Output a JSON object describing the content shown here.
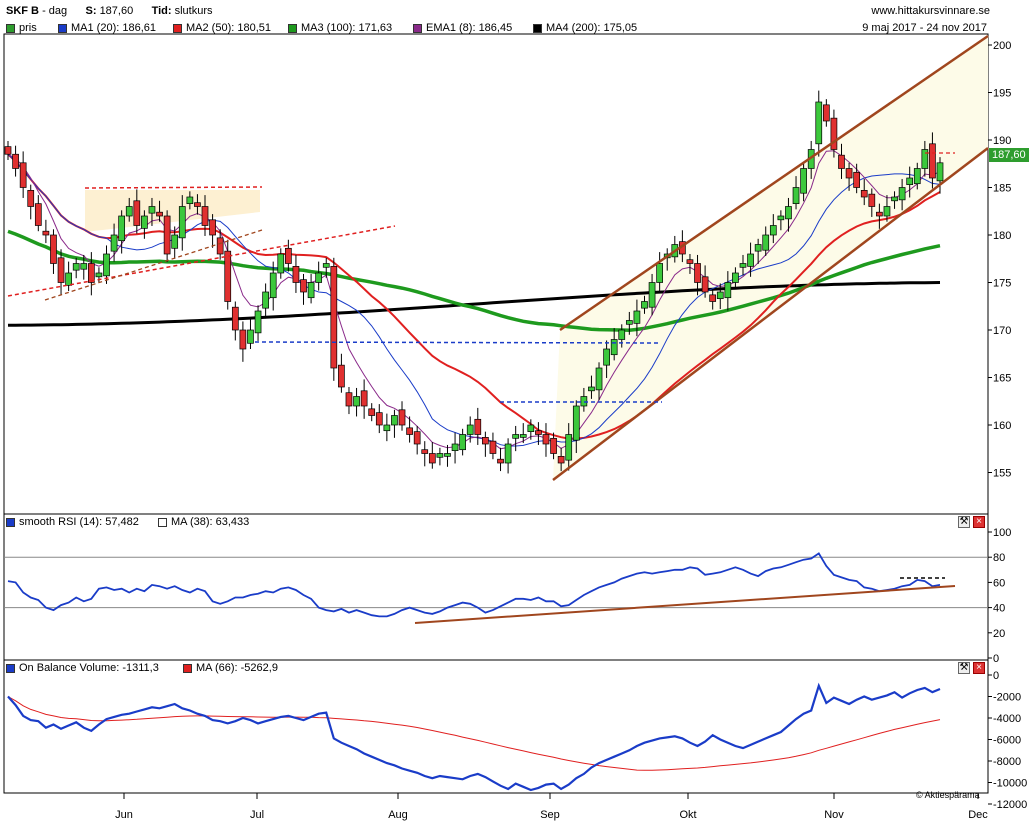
{
  "header": {
    "ticker": "SKF B",
    "period": "dag",
    "s_label": "S:",
    "s_value": "187,60",
    "tid_label": "Tid:",
    "tid_value": "slutkurs",
    "site": "www.hittakursvinnare.se",
    "date_range": "9 maj 2017 - 24 nov 2017",
    "last_price": "187,60",
    "credit": "© Aktiespärama"
  },
  "legend_price": [
    {
      "label": "pris",
      "color": "#2e9d2e"
    },
    {
      "label": "MA1 (20): 186,61",
      "color": "#1a3cc8"
    },
    {
      "label": "MA2 (50): 180,51",
      "color": "#e02020"
    },
    {
      "label": "MA3 (100): 171,63",
      "color": "#1e9a1e"
    },
    {
      "label": "EMA1 (8): 186,45",
      "color": "#8a2a8a"
    },
    {
      "label": "MA4 (200): 175,05",
      "color": "#000000"
    }
  ],
  "legend_rsi": [
    {
      "label": "smooth RSI (14): 57,482",
      "color": "#1a3cc8"
    },
    {
      "label": "MA (38): 63,433",
      "color": "#ffffff"
    }
  ],
  "legend_obv": [
    {
      "label": "On Balance Volume: -1311,3",
      "color": "#1a3cc8"
    },
    {
      "label": "MA (66): -5262,9",
      "color": "#e02020"
    }
  ],
  "chart_data": [
    {
      "type": "candlestick",
      "x_ticks": [
        "Jun",
        "Jul",
        "Aug",
        "Sep",
        "Okt",
        "Nov",
        "Dec"
      ],
      "y_ticks": [
        155,
        160,
        165,
        170,
        175,
        180,
        185,
        190,
        195,
        200
      ],
      "ylim": [
        150,
        200
      ],
      "close": [
        188.5,
        187,
        185,
        183,
        181,
        180,
        177,
        175,
        176,
        177,
        177,
        175,
        176,
        178,
        180,
        182,
        183,
        181,
        182,
        183,
        182,
        178,
        180,
        183,
        184,
        183,
        181,
        180,
        178,
        173,
        170,
        168,
        170,
        172,
        174,
        176,
        178,
        177,
        175,
        174,
        175,
        176,
        177,
        166,
        164,
        162,
        163,
        162,
        161,
        160,
        160,
        161,
        160,
        159,
        158,
        157,
        156,
        157,
        157,
        158,
        159,
        160,
        159,
        158,
        157,
        156,
        158,
        159,
        159,
        160,
        159,
        158,
        157,
        156,
        159,
        162,
        163,
        164,
        166,
        168,
        169,
        170,
        171,
        172,
        173,
        175,
        177,
        178,
        179,
        178,
        177,
        175,
        174,
        173,
        174,
        175,
        176,
        177,
        178,
        179,
        180,
        181,
        182,
        183,
        185,
        187,
        189,
        194,
        192,
        189,
        187,
        186,
        185,
        184,
        183,
        182,
        183,
        184,
        185,
        186,
        187,
        189,
        186,
        187.6
      ]
    },
    {
      "type": "line",
      "title": "smooth RSI (14)",
      "ylim": [
        0,
        100
      ],
      "y_ticks": [
        0,
        20,
        40,
        60,
        80,
        100
      ],
      "values": [
        61,
        60,
        52,
        48,
        46,
        40,
        38,
        42,
        44,
        48,
        45,
        47,
        55,
        56,
        54,
        55,
        52,
        55,
        53,
        58,
        57,
        55,
        57,
        54,
        52,
        55,
        53,
        45,
        43,
        45,
        48,
        48,
        50,
        51,
        53,
        52,
        55,
        56,
        54,
        50,
        47,
        40,
        38,
        37,
        39,
        36,
        38,
        36,
        34,
        33,
        33,
        35,
        38,
        40,
        38,
        36,
        35,
        37,
        40,
        42,
        44,
        43,
        40,
        36,
        38,
        41,
        44,
        47,
        47,
        46,
        48,
        45,
        45,
        41,
        42,
        46,
        50,
        53,
        56,
        58,
        60,
        63,
        65,
        67,
        68,
        67,
        68,
        69,
        70,
        70,
        72,
        71,
        66,
        67,
        68,
        70,
        72,
        70,
        67,
        65,
        69,
        71,
        72,
        74,
        76,
        78,
        79,
        83,
        73,
        66,
        64,
        62,
        61,
        56,
        55,
        53,
        54,
        55,
        57,
        58,
        62,
        61,
        57,
        58
      ]
    },
    {
      "type": "line",
      "title": "On Balance Volume",
      "ylim": [
        -12000,
        0
      ],
      "y_ticks": [
        0,
        -2000,
        -4000,
        -6000,
        -8000,
        -10000,
        -12000
      ],
      "values": [
        -2000,
        -2800,
        -3800,
        -4200,
        -4300,
        -4900,
        -4600,
        -5000,
        -4700,
        -4400,
        -4900,
        -5200,
        -4600,
        -4100,
        -3900,
        -3700,
        -3600,
        -3400,
        -3200,
        -3000,
        -3100,
        -2900,
        -2700,
        -3100,
        -3300,
        -3600,
        -3800,
        -4200,
        -4300,
        -4500,
        -4300,
        -4000,
        -4200,
        -4500,
        -4300,
        -4100,
        -3900,
        -3800,
        -4000,
        -4200,
        -3900,
        -3600,
        -3500,
        -5900,
        -6300,
        -6600,
        -6900,
        -7300,
        -7600,
        -7900,
        -8200,
        -8400,
        -8700,
        -8900,
        -9100,
        -9400,
        -9600,
        -9400,
        -9500,
        -9600,
        -9700,
        -9400,
        -9200,
        -9500,
        -9900,
        -10300,
        -10600,
        -10100,
        -10400,
        -10700,
        -10500,
        -10200,
        -10100,
        -10600,
        -10200,
        -9600,
        -9200,
        -8600,
        -8200,
        -7900,
        -7600,
        -7300,
        -7000,
        -6600,
        -6300,
        -6100,
        -5900,
        -5800,
        -5700,
        -5900,
        -6300,
        -6600,
        -6200,
        -5600,
        -6000,
        -6300,
        -6600,
        -6800,
        -6500,
        -6200,
        -5900,
        -5600,
        -5300,
        -4700,
        -4100,
        -3600,
        -3300,
        -1000,
        -2600,
        -2100,
        -2400,
        -2700,
        -2300,
        -2000,
        -2300,
        -2100,
        -1900,
        -1600,
        -2100,
        -1700,
        -1400,
        -1200,
        -1600,
        -1300
      ]
    }
  ]
}
